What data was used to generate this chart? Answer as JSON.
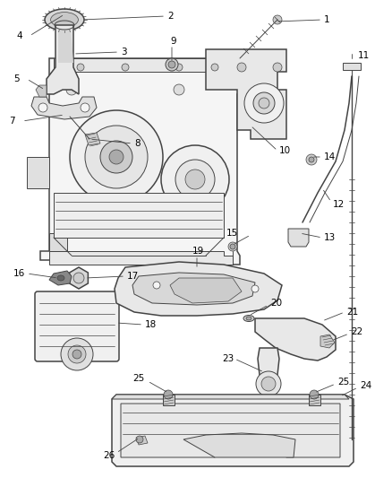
{
  "bg_color": "#ffffff",
  "line_color": "#444444",
  "label_color": "#000000",
  "figsize": [
    4.38,
    5.33
  ],
  "dpi": 100,
  "label_fs": 7.5,
  "lw_main": 1.1,
  "lw_thin": 0.7,
  "lw_detail": 0.5,
  "gray_fill": "#cccccc",
  "mid_fill": "#aaaaaa",
  "dark_fill": "#888888",
  "light_fill": "#eeeeee"
}
